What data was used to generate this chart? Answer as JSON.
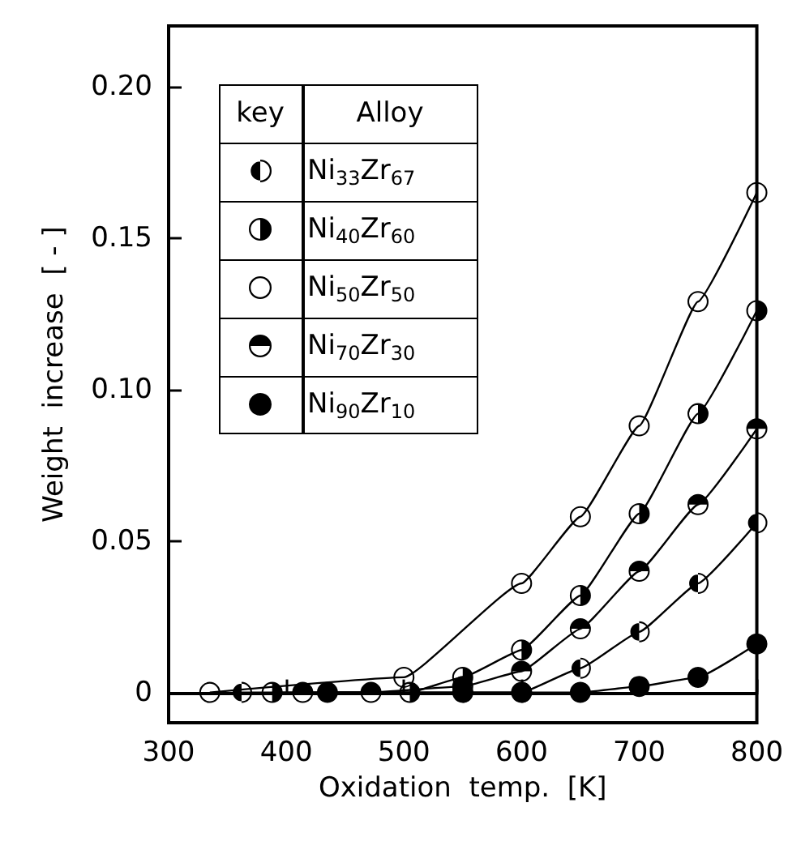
{
  "chart_data": {
    "type": "line",
    "xlabel": "Oxidation  temp.  [K]",
    "ylabel": "Weight  increase  [ - ]",
    "legend_title": "Alloy",
    "annotations": [
      "key"
    ],
    "xlim": [
      300,
      800
    ],
    "xticks": [
      300,
      400,
      500,
      600,
      700,
      800
    ],
    "ylim": [
      -0.01,
      0.22
    ],
    "yticks": [
      0,
      0.05,
      {
        "value": 0.1,
        "label": "0.10"
      },
      0.15,
      {
        "value": 0.2,
        "label": "0.20"
      }
    ],
    "legend": "top left",
    "marker": "circle",
    "line_style": "solid",
    "series": [
      {
        "name": "Ni$_{33}$Zr$_{67}$",
        "color": "#000000",
        "x": [
          362,
          550,
          600,
          650,
          700,
          750,
          800
        ],
        "values": [
          0,
          0,
          0,
          0.008,
          0.02,
          0.036,
          0.056
        ]
      },
      {
        "name": "Ni$_{40}$Zr$_{60}$",
        "color": "#000000",
        "x": [
          388,
          505,
          550,
          600,
          650,
          700,
          750,
          800
        ],
        "values": [
          0,
          0,
          0.005,
          0.014,
          0.032,
          0.059,
          0.092,
          0.126
        ]
      },
      {
        "name": "Ni$_{50}$Zr$_{50}$",
        "color": "#000000",
        "x": [
          335,
          500,
          600,
          650,
          700,
          750,
          800
        ],
        "values": [
          0,
          0.005,
          0.036,
          0.058,
          0.088,
          0.129,
          0.165
        ]
      },
      {
        "name": "Ni$_{70}$Zr$_{30}$",
        "color": "#000000",
        "x": [
          414,
          472,
          550,
          600,
          650,
          700,
          750,
          800
        ],
        "values": [
          0,
          0,
          0.002,
          0.007,
          0.021,
          0.04,
          0.062,
          0.087
        ]
      },
      {
        "name": "Ni$_{90}$Zr$_{10}$",
        "color": "#000000",
        "x": [
          435,
          550,
          600,
          650,
          700,
          750,
          800
        ],
        "values": [
          0,
          0,
          0,
          0,
          0.002,
          0.005,
          0.016
        ]
      }
    ]
  }
}
